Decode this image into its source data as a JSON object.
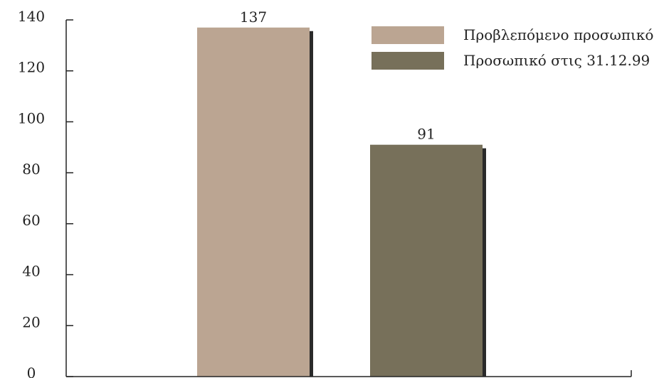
{
  "chart_data": {
    "type": "bar",
    "categories": [
      "Προβλεπόμενο προσωπικό",
      "Προσωπικό στις 31.12.99"
    ],
    "values": [
      137,
      91
    ],
    "data_labels": [
      "137",
      "91"
    ],
    "series": [
      {
        "name": "Προβλεπόμενο προσωπικό",
        "value": 137,
        "color": "#bba592"
      },
      {
        "name": "Προσωπικό στις 31.12.99",
        "value": 91,
        "color": "#77705a"
      }
    ],
    "yticks": [
      "0",
      "20",
      "40",
      "60",
      "80",
      "100",
      "120",
      "140"
    ],
    "ylim": [
      0,
      140
    ],
    "grid": false,
    "legend_position": "top-right",
    "shadow_color": "#2a2a2a",
    "axis_color": "#222222"
  }
}
